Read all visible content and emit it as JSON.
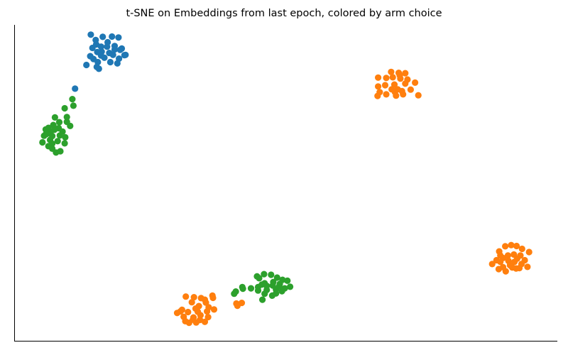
{
  "chart_data": {
    "type": "scatter",
    "title": "t-SNE on Embeddings from last epoch, colored by arm choice",
    "xlabel": "",
    "ylabel": "",
    "x_ticks": [],
    "y_ticks": [],
    "grid": false,
    "legend": "none",
    "xlim": [
      0,
      100
    ],
    "ylim": [
      0,
      100
    ],
    "series": [
      {
        "color": "#1f77b4",
        "points": [
          [
            14.4,
            92.7
          ],
          [
            15.1,
            93.8
          ],
          [
            16.0,
            93.1
          ],
          [
            17.2,
            94.5
          ],
          [
            18.5,
            93.3
          ],
          [
            19.8,
            92.5
          ],
          [
            20.3,
            90.4
          ],
          [
            17.5,
            91.1
          ],
          [
            16.1,
            91.5
          ],
          [
            15.3,
            91.4
          ],
          [
            14.0,
            90.1
          ],
          [
            15.4,
            88.2
          ],
          [
            16.6,
            89.6
          ],
          [
            13.3,
            87.3
          ],
          [
            15.2,
            86.7
          ],
          [
            17.7,
            88.2
          ],
          [
            19.0,
            87.8
          ],
          [
            19.3,
            89.3
          ],
          [
            16.0,
            90.3
          ],
          [
            18.2,
            90.5
          ],
          [
            17.1,
            93.1
          ],
          [
            18.5,
            92.2
          ],
          [
            15.0,
            95.2
          ],
          [
            16.3,
            96.2
          ],
          [
            18.0,
            96.3
          ],
          [
            19.2,
            96.0
          ],
          [
            14.1,
            96.9
          ],
          [
            14.6,
            89.2
          ],
          [
            15.6,
            86.1
          ],
          [
            19.5,
            92.1
          ],
          [
            20.5,
            90.5
          ],
          [
            11.2,
            79.8
          ]
        ]
      },
      {
        "color": "#ff7f0e",
        "points": [
          [
            67.0,
            83.3
          ],
          [
            68.5,
            83.2
          ],
          [
            69.7,
            83.4
          ],
          [
            71.1,
            83.0
          ],
          [
            72.4,
            82.7
          ],
          [
            73.8,
            81.7
          ],
          [
            72.0,
            81.4
          ],
          [
            70.0,
            81.1
          ],
          [
            68.3,
            80.9
          ],
          [
            70.6,
            79.6
          ],
          [
            70.1,
            78.7
          ],
          [
            67.3,
            78.7
          ],
          [
            66.9,
            77.5
          ],
          [
            70.3,
            77.6
          ],
          [
            71.6,
            78.0
          ],
          [
            73.0,
            79.5
          ],
          [
            74.4,
            77.7
          ],
          [
            70.8,
            84.8
          ],
          [
            72.0,
            84.7
          ],
          [
            69.4,
            85.1
          ],
          [
            71.0,
            84.0
          ],
          [
            69.5,
            79.6
          ],
          [
            68.5,
            78.0
          ],
          [
            67.0,
            80.5
          ],
          [
            71.4,
            79.0
          ],
          [
            89.3,
            28.3
          ],
          [
            90.4,
            29.9
          ],
          [
            91.5,
            30.3
          ],
          [
            92.5,
            30.0
          ],
          [
            93.5,
            29.1
          ],
          [
            94.8,
            28.1
          ],
          [
            93.2,
            27.0
          ],
          [
            92.0,
            27.3
          ],
          [
            90.9,
            27.0
          ],
          [
            90.0,
            26.2
          ],
          [
            91.0,
            25.3
          ],
          [
            92.1,
            25.0
          ],
          [
            93.4,
            24.3
          ],
          [
            94.5,
            23.4
          ],
          [
            93.0,
            23.0
          ],
          [
            91.7,
            23.2
          ],
          [
            90.5,
            22.0
          ],
          [
            89.2,
            22.7
          ],
          [
            88.0,
            24.3
          ],
          [
            89.5,
            25.0
          ],
          [
            91.3,
            23.9
          ],
          [
            92.6,
            26.0
          ],
          [
            89.5,
            27.0
          ],
          [
            90.0,
            23.3
          ],
          [
            94.0,
            25.5
          ],
          [
            92.4,
            22.9
          ],
          [
            88.8,
            25.5
          ],
          [
            31.6,
            14.0
          ],
          [
            33.1,
            13.8
          ],
          [
            35.1,
            13.0
          ],
          [
            36.5,
            14.3
          ],
          [
            36.6,
            13.6
          ],
          [
            35.3,
            12.1
          ],
          [
            32.7,
            12.2
          ],
          [
            34.0,
            11.0
          ],
          [
            35.8,
            10.6
          ],
          [
            36.8,
            9.9
          ],
          [
            35.5,
            9.3
          ],
          [
            33.8,
            9.2
          ],
          [
            32.0,
            9.1
          ],
          [
            30.6,
            9.3
          ],
          [
            30.0,
            8.8
          ],
          [
            31.2,
            7.6
          ],
          [
            33.0,
            7.4
          ],
          [
            34.2,
            6.6
          ],
          [
            35.1,
            6.0
          ],
          [
            35.7,
            7.5
          ],
          [
            33.5,
            5.8
          ],
          [
            32.2,
            5.7
          ],
          [
            31.5,
            6.2
          ],
          [
            40.9,
            11.8
          ],
          [
            41.1,
            11.1
          ],
          [
            41.9,
            12.0
          ],
          [
            30.9,
            9.8
          ],
          [
            33.4,
            10.2
          ],
          [
            34.3,
            8.1
          ],
          [
            32.9,
            6.7
          ],
          [
            34.4,
            13.5
          ]
        ]
      },
      {
        "color": "#2ca02c",
        "points": [
          [
            10.7,
            76.5
          ],
          [
            10.9,
            74.4
          ],
          [
            9.3,
            73.6
          ],
          [
            9.7,
            70.8
          ],
          [
            10.3,
            68.0
          ],
          [
            8.3,
            69.2
          ],
          [
            7.5,
            70.7
          ],
          [
            7.2,
            68.3
          ],
          [
            6.7,
            66.2
          ],
          [
            6.0,
            65.5
          ],
          [
            5.8,
            66.9
          ],
          [
            7.0,
            64.8
          ],
          [
            8.4,
            65.0
          ],
          [
            9.4,
            64.4
          ],
          [
            8.0,
            63.2
          ],
          [
            7.0,
            62.4
          ],
          [
            6.3,
            61.6
          ],
          [
            7.0,
            60.8
          ],
          [
            7.7,
            59.6
          ],
          [
            8.5,
            60.0
          ],
          [
            9.3,
            62.5
          ],
          [
            5.2,
            62.8
          ],
          [
            5.9,
            65.6
          ],
          [
            8.2,
            67.3
          ],
          [
            7.4,
            66.8
          ],
          [
            6.6,
            63.6
          ],
          [
            8.9,
            66.2
          ],
          [
            5.5,
            64.9
          ],
          [
            6.3,
            67.4
          ],
          [
            9.7,
            69.3
          ],
          [
            45.1,
            19.8
          ],
          [
            46.0,
            21.1
          ],
          [
            47.3,
            20.9
          ],
          [
            48.4,
            20.0
          ],
          [
            49.4,
            19.3
          ],
          [
            50.3,
            19.0
          ],
          [
            48.9,
            18.0
          ],
          [
            47.6,
            17.5
          ],
          [
            46.5,
            17.4
          ],
          [
            45.6,
            17.8
          ],
          [
            44.9,
            17.0
          ],
          [
            46.5,
            16.1
          ],
          [
            48.2,
            16.3
          ],
          [
            49.8,
            16.6
          ],
          [
            50.8,
            17.1
          ],
          [
            49.3,
            15.7
          ],
          [
            48.2,
            15.0
          ],
          [
            47.5,
            14.3
          ],
          [
            46.1,
            14.9
          ],
          [
            45.7,
            13.0
          ],
          [
            44.9,
            15.9
          ],
          [
            43.6,
            16.6
          ],
          [
            42.1,
            16.5
          ],
          [
            42.0,
            17.0
          ],
          [
            40.8,
            15.6
          ],
          [
            40.5,
            14.9
          ],
          [
            47.7,
            18.6
          ],
          [
            46.1,
            18.2
          ],
          [
            48.8,
            17.3
          ],
          [
            44.7,
            20.4
          ]
        ]
      }
    ]
  }
}
